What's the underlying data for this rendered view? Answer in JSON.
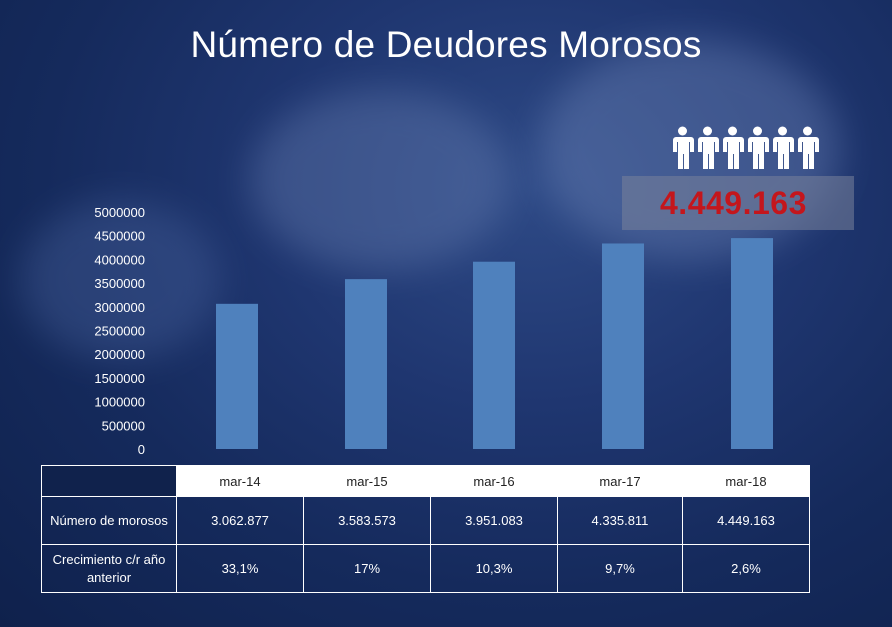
{
  "title": "Número de Deudores Morosos",
  "highlight": {
    "value": "4.449.163",
    "icon": "people-group-icon",
    "color": "#c4161c"
  },
  "colors": {
    "bar": "#4f81bd",
    "background": "#1a3167"
  },
  "chart_data": {
    "type": "bar",
    "title": "Número de Deudores Morosos",
    "categories": [
      "mar-14",
      "mar-15",
      "mar-16",
      "mar-17",
      "mar-18"
    ],
    "values": [
      3062877,
      3583573,
      3951083,
      4335811,
      4449163
    ],
    "ylim": [
      0,
      5000000
    ],
    "yticks": [
      0,
      500000,
      1000000,
      1500000,
      2000000,
      2500000,
      3000000,
      3500000,
      4000000,
      4500000,
      5000000
    ],
    "xlabel": "",
    "ylabel": "",
    "grid": false,
    "legend": "none"
  },
  "table": {
    "columns": [
      "mar-14",
      "mar-15",
      "mar-16",
      "mar-17",
      "mar-18"
    ],
    "rows": [
      {
        "label": "Número de morosos",
        "values": [
          "3.062.877",
          "3.583.573",
          "3.951.083",
          "4.335.811",
          "4.449.163"
        ]
      },
      {
        "label": "Crecimiento c/r año anterior",
        "values": [
          "33,1%",
          "17%",
          "10,3%",
          "9,7%",
          "2,6%"
        ]
      }
    ]
  }
}
